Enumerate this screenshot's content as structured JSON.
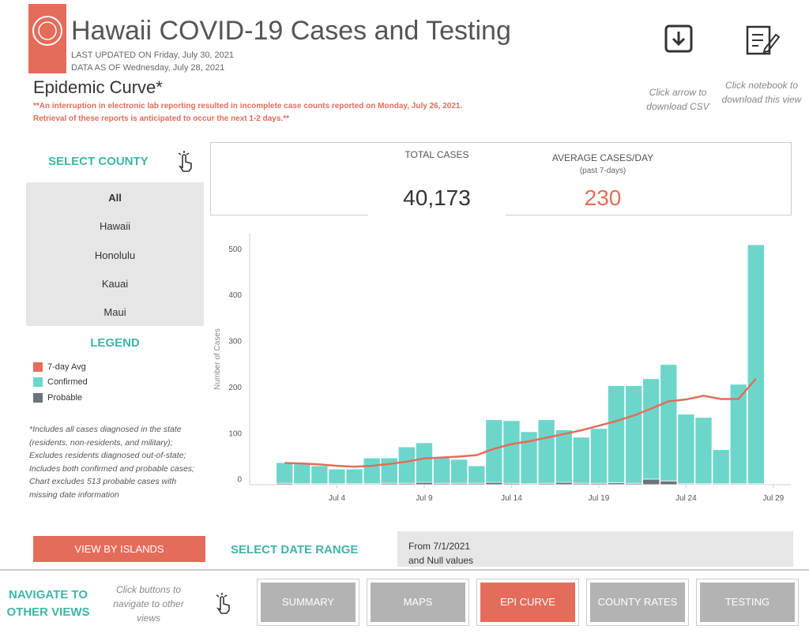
{
  "header": {
    "title": "Hawaii COVID-19 Cases and Testing",
    "last_updated": "LAST UPDATED ON Friday, July 30, 2021",
    "data_as_of": "DATA AS OF Wednesday, July 28, 2021"
  },
  "downloads": [
    "Click arrow to download CSV",
    "Click notebook to download this view"
  ],
  "section": {
    "title": "Epidemic Curve*",
    "notes": [
      "**An interruption in electronic lab reporting resulted in incomplete case counts reported on Monday, July 26, 2021.",
      "Retrieval of these reports is anticipated to occur the next 1-2 days.**"
    ]
  },
  "county_filter": {
    "title": "SELECT COUNTY",
    "options": [
      "All",
      "Hawaii",
      "Honolulu",
      "Kauai",
      "Maui"
    ]
  },
  "legend_title": "LEGEND",
  "footnote": "*Includes all cases diagnosed in the state (residents, non-residents, and military); Excludes residents diagnosed out-of-state; Includes both confirmed and probable cases; Chart excludes 513 probable cases with missing date information",
  "kpis": [
    {
      "label": "TOTAL CASES",
      "value": "40,173"
    },
    {
      "label": "AVERAGE CASES/DAY",
      "sublabel": "(past 7-days)",
      "value": "230"
    }
  ],
  "chart_data": {
    "type": "bar",
    "y_label": "Number of Cases",
    "stacked": true,
    "x": [
      1,
      2,
      3,
      4,
      5,
      6,
      7,
      8,
      9,
      10,
      11,
      12,
      13,
      14,
      15,
      16,
      17,
      18,
      19,
      20,
      21,
      22,
      23,
      24,
      25,
      26,
      27,
      28
    ],
    "xlim": [
      -1,
      30
    ],
    "xticks": [
      {
        "value": 4,
        "label": "Jul 4"
      },
      {
        "value": 9,
        "label": "Jul 9"
      },
      {
        "value": 14,
        "label": "Jul 14"
      },
      {
        "value": 19,
        "label": "Jul 19"
      },
      {
        "value": 24,
        "label": "Jul 24"
      },
      {
        "value": 29,
        "label": "Jul 29"
      }
    ],
    "ylim": [
      0,
      545
    ],
    "yticks": [
      0,
      100,
      200,
      300,
      400,
      500
    ],
    "series": [
      {
        "name": "7-day Avg",
        "type": "line",
        "color": "#e46c5a",
        "values": [
          47,
          46,
          44,
          41,
          39,
          41,
          45,
          50,
          57,
          59,
          61,
          64,
          78,
          88,
          94,
          102,
          110,
          118,
          128,
          138,
          150,
          165,
          181,
          185,
          193,
          186,
          186,
          230
        ]
      },
      {
        "name": "Confirmed",
        "type": "bar",
        "color": "#6dd6cb",
        "values": [
          45,
          43,
          39,
          32,
          32,
          56,
          55,
          79,
          86,
          55,
          52,
          38,
          136,
          136,
          113,
          138,
          114,
          100,
          119,
          211,
          212,
          218,
          253,
          151,
          144,
          74,
          216,
          519
        ]
      },
      {
        "name": "Probable",
        "type": "bar",
        "color": "#6b737c",
        "values": [
          3,
          2,
          2,
          2,
          2,
          2,
          3,
          3,
          5,
          3,
          3,
          3,
          5,
          3,
          2,
          3,
          5,
          3,
          3,
          4,
          3,
          12,
          8,
          2,
          2,
          2,
          2,
          2
        ]
      }
    ]
  },
  "view_button": "VIEW BY ISLANDS",
  "date_range": {
    "title": "SELECT DATE RANGE",
    "lines": [
      "From 7/1/2021",
      "and Null values"
    ]
  },
  "navigation": {
    "title_lines": [
      "NAVIGATE TO",
      "OTHER VIEWS"
    ],
    "hint": "Click buttons to navigate to other views",
    "buttons": [
      "SUMMARY",
      "MAPS",
      "EPI CURVE",
      "COUNTY RATES",
      "TESTING"
    ],
    "active": 2
  }
}
